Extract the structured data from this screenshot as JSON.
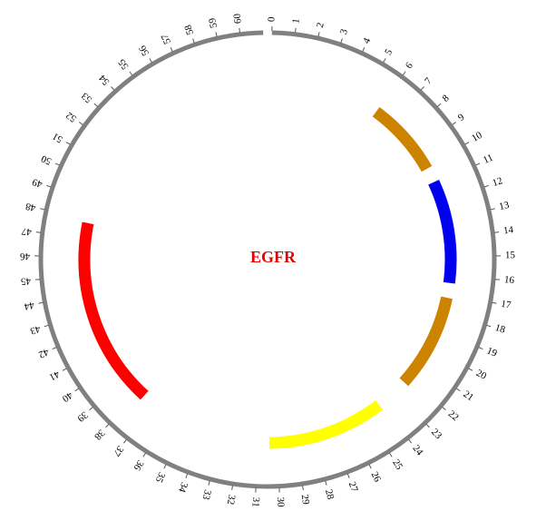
{
  "title": "EGFR",
  "colors": {
    "title": "#e60000",
    "ring": "#808080",
    "tick": "#555555"
  },
  "chart_data": {
    "type": "circos",
    "axis": {
      "min": 0,
      "max": 61,
      "tick_step": 1,
      "labels": [
        "0",
        "1",
        "2",
        "3",
        "4",
        "5",
        "6",
        "7",
        "8",
        "9",
        "10",
        "11",
        "12",
        "13",
        "14",
        "15",
        "16",
        "17",
        "18",
        "19",
        "20",
        "21",
        "22",
        "23",
        "24",
        "25",
        "26",
        "27",
        "28",
        "29",
        "30",
        "31",
        "32",
        "33",
        "34",
        "35",
        "36",
        "37",
        "38",
        "39",
        "40",
        "41",
        "42",
        "43",
        "44",
        "45",
        "46",
        "47",
        "48",
        "49",
        "50",
        "51",
        "52",
        "53",
        "54",
        "55",
        "56",
        "57",
        "58",
        "59",
        "60"
      ]
    },
    "segments": [
      {
        "start": 6.0,
        "end": 10.1,
        "color": "#cc8400"
      },
      {
        "start": 10.9,
        "end": 16.4,
        "color": "#0000ee"
      },
      {
        "start": 17.2,
        "end": 22.3,
        "color": "#cc8400"
      },
      {
        "start": 24.1,
        "end": 30.4,
        "color": "#ffff00"
      },
      {
        "start": 37.7,
        "end": 47.8,
        "color": "#ff0000"
      }
    ]
  }
}
